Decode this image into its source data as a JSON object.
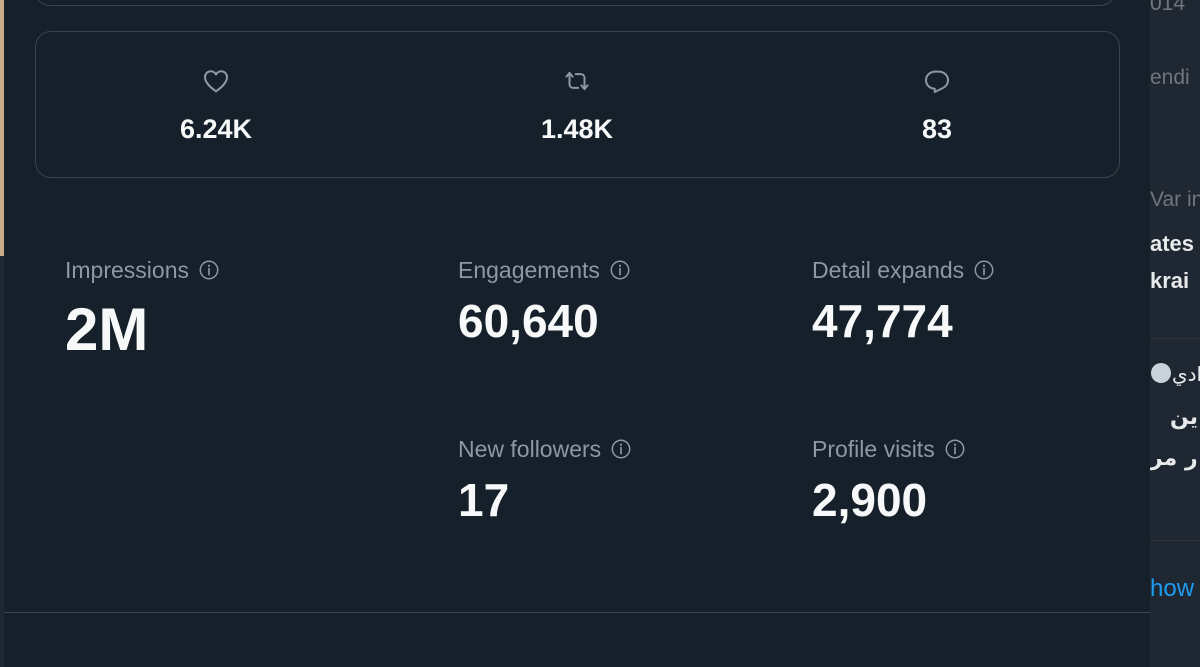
{
  "engagement_summary": {
    "likes": {
      "icon": "heart-icon",
      "value": "6.24K"
    },
    "retweets": {
      "icon": "retweet-icon",
      "value": "1.48K"
    },
    "replies": {
      "icon": "reply-icon",
      "value": "83"
    }
  },
  "metrics": {
    "impressions": {
      "label": "Impressions",
      "value": "2M"
    },
    "engagements": {
      "label": "Engagements",
      "value": "60,640"
    },
    "detail_expands": {
      "label": "Detail expands",
      "value": "47,774"
    },
    "new_followers": {
      "label": "New followers",
      "value": "17"
    },
    "profile_visits": {
      "label": "Profile visits",
      "value": "2,900"
    }
  },
  "sidebar": {
    "top_fragment": "014",
    "trending_fragment": "endi",
    "war_fragment": "Var in",
    "headline_line1": "ates",
    "headline_line2": "krai",
    "arabic_name": "ادي",
    "arabic_line1": "ين",
    "arabic_line2": "ر مر",
    "show_more": "how"
  },
  "colors": {
    "background": "#15202b",
    "border": "#38444d",
    "text_primary": "#f7f9f9",
    "text_secondary": "#8b98a5",
    "accent": "#1d9bf0"
  }
}
